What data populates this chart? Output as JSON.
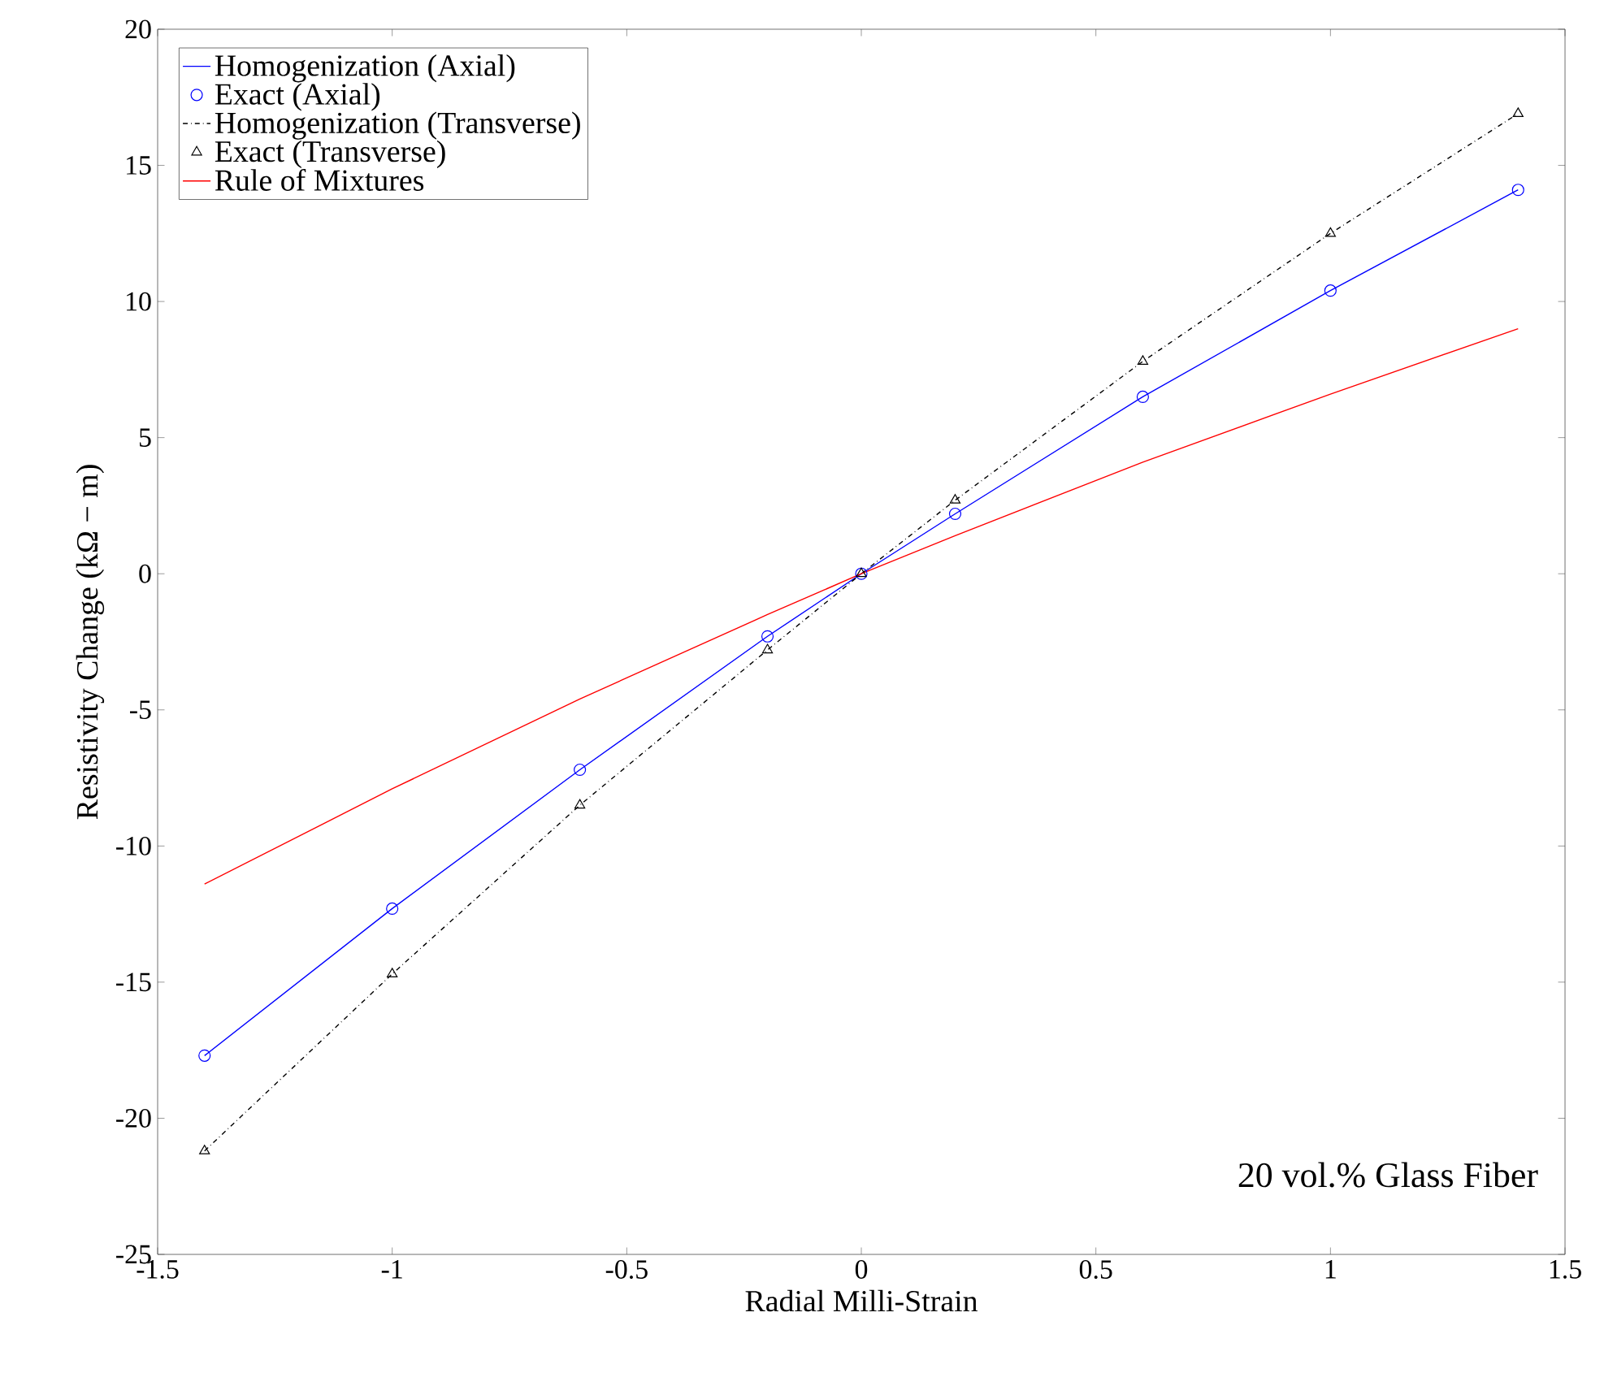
{
  "chart_data": {
    "type": "line",
    "xlabel": "Radial Milli-Strain",
    "ylabel": "Resistivity Change (kΩ − m)",
    "xlim": [
      -1.5,
      1.5
    ],
    "ylim": [
      -25,
      20
    ],
    "xticks": [
      -1.5,
      -1,
      -0.5,
      0,
      0.5,
      1,
      1.5
    ],
    "yticks": [
      -25,
      -20,
      -15,
      -10,
      -5,
      0,
      5,
      10,
      15,
      20
    ],
    "grid": false,
    "legend": "top left",
    "annotations": [
      "20 vol.% Glass Fiber"
    ],
    "series": [
      {
        "name": "Homogenization (Axial)",
        "type": "line",
        "color": "#0000ff",
        "line_style": "solid",
        "marker": "none",
        "x": [
          -1.4,
          -1,
          -0.6,
          -0.2,
          0,
          0.2,
          0.6,
          1,
          1.4
        ],
        "values": [
          -17.7,
          -12.3,
          -7.2,
          -2.3,
          0,
          2.2,
          6.5,
          10.4,
          14.1
        ]
      },
      {
        "name": "Exact (Axial)",
        "type": "scatter",
        "color": "#0000ff",
        "marker": "circle",
        "x": [
          -1.4,
          -1,
          -0.6,
          -0.2,
          0,
          0.2,
          0.6,
          1,
          1.4
        ],
        "values": [
          -17.7,
          -12.3,
          -7.2,
          -2.3,
          0,
          2.2,
          6.5,
          10.4,
          14.1
        ]
      },
      {
        "name": "Homogenization (Transverse)",
        "type": "line",
        "color": "#000000",
        "line_style": "dashdot",
        "marker": "none",
        "x": [
          -1.4,
          -1,
          -0.6,
          -0.2,
          0,
          0.2,
          0.6,
          1,
          1.4
        ],
        "values": [
          -21.2,
          -14.7,
          -8.5,
          -2.8,
          0,
          2.7,
          7.8,
          12.5,
          16.9
        ]
      },
      {
        "name": "Exact (Transverse)",
        "type": "scatter",
        "color": "#000000",
        "marker": "triangle",
        "x": [
          -1.4,
          -1,
          -0.6,
          -0.2,
          0,
          0.2,
          0.6,
          1,
          1.4
        ],
        "values": [
          -21.2,
          -14.7,
          -8.5,
          -2.8,
          0,
          2.7,
          7.8,
          12.5,
          16.9
        ]
      },
      {
        "name": "Rule of Mixtures",
        "type": "line",
        "color": "#ff0000",
        "line_style": "solid",
        "marker": "none",
        "x": [
          -1.4,
          -1,
          -0.6,
          -0.2,
          0,
          0.2,
          0.6,
          1,
          1.4
        ],
        "values": [
          -11.4,
          -7.9,
          -4.6,
          -1.5,
          0,
          1.4,
          4.1,
          6.6,
          9.0
        ]
      }
    ]
  }
}
